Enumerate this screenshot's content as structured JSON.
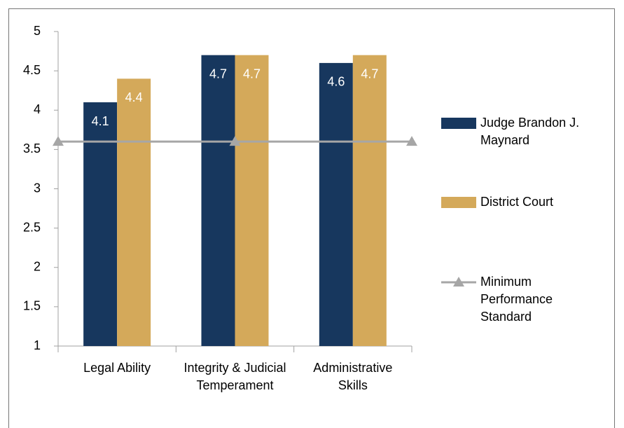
{
  "chart_data": {
    "type": "bar",
    "categories": [
      "Legal Ability",
      "Integrity & Judicial Temperament",
      "Administrative Skills"
    ],
    "series": [
      {
        "name": "Judge Brandon J. Maynard",
        "color": "#17375e",
        "values": [
          4.1,
          4.7,
          4.6
        ]
      },
      {
        "name": "District Court",
        "color": "#d4a95a",
        "values": [
          4.4,
          4.7,
          4.7
        ]
      },
      {
        "name": "Minimum Performance Standard",
        "color": "#a6a6a6",
        "type": "line",
        "values": [
          3.6,
          3.6,
          3.6
        ]
      }
    ],
    "ylim": [
      1,
      5
    ],
    "yticks": [
      1,
      1.5,
      2,
      2.5,
      3,
      3.5,
      4,
      4.5,
      5
    ],
    "data_labels": true,
    "legend": "right"
  }
}
